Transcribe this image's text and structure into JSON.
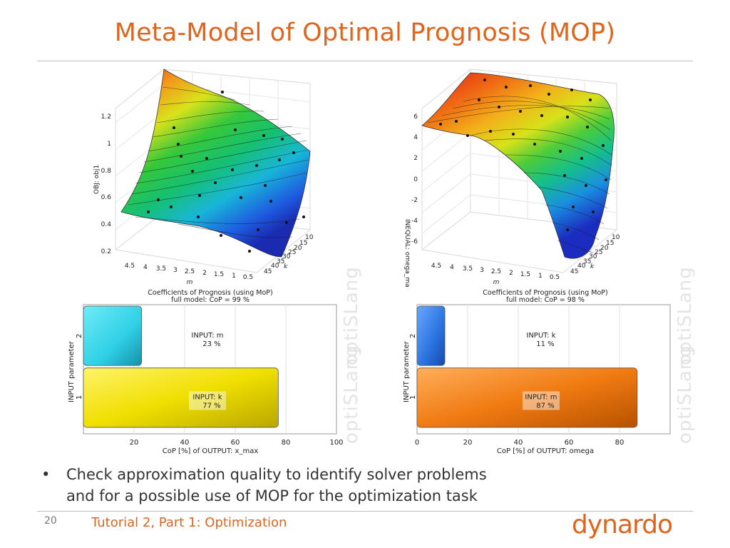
{
  "slide": {
    "title": "Meta-Model of Optimal Prognosis (MOP)",
    "page_number": "20",
    "footer_text": "Tutorial 2, Part 1: Optimization",
    "logo_text": "dynardo",
    "bullets": [
      [
        "Check approximation quality to identify solver problems",
        "and for a possible use of MOP for the optimization task"
      ]
    ],
    "watermark": "optiSLang"
  },
  "colors": {
    "title": "#e0641c",
    "footer": "#e0641c",
    "rule": "#bdbdbd"
  },
  "chart_data": [
    {
      "type": "surface3d",
      "zlabel": "OBJ: obj1",
      "xlabel": "m",
      "ylabel": "k",
      "x_ticks": [
        "4.5",
        "4",
        "3.5",
        "3",
        "2.5",
        "2",
        "1.5",
        "1",
        "0.5"
      ],
      "y_ticks": [
        "10",
        "15",
        "20",
        "25",
        "30",
        "35",
        "40",
        "45"
      ],
      "z_ticks": [
        "0.2",
        "0.4",
        "0.6",
        "0.8",
        "1",
        "1.2"
      ],
      "colormap": "jet (blue low to red high)"
    },
    {
      "type": "surface3d",
      "zlabel": "INEQUAL: omega_max",
      "xlabel": "m",
      "ylabel": "k",
      "x_ticks": [
        "4.5",
        "4",
        "3.5",
        "3",
        "2.5",
        "2",
        "1.5",
        "1",
        "0.5"
      ],
      "y_ticks": [
        "10",
        "15",
        "20",
        "25",
        "30",
        "35",
        "40",
        "45"
      ],
      "z_ticks": [
        "-6",
        "-4",
        "-2",
        "0",
        "2",
        "4",
        "6"
      ],
      "colormap": "jet (blue low to red high)"
    },
    {
      "type": "bar",
      "orientation": "horizontal",
      "title": "Coefficients of Prognosis (using MoP)",
      "subtitle": "full model: CoP =    99 %",
      "xlabel": "CoP [%] of OUTPUT: x_max",
      "ylabel": "INPUT parameter",
      "xlim": [
        0,
        100
      ],
      "x_ticks": [
        "20",
        "40",
        "60",
        "80",
        "100"
      ],
      "categories": [
        "1",
        "2"
      ],
      "bar_labels": [
        {
          "name": "INPUT: k",
          "value_text": "77 %",
          "value": 77,
          "color": "#f2e000"
        },
        {
          "name": "INPUT: m",
          "value_text": "23 %",
          "value": 23,
          "color": "#2fd0e6"
        }
      ]
    },
    {
      "type": "bar",
      "orientation": "horizontal",
      "title": "Coefficients of Prognosis (using MoP)",
      "subtitle": "full model: CoP =    98 %",
      "xlabel": "CoP [%] of OUTPUT: omega",
      "ylabel": "INPUT parameter",
      "xlim": [
        0,
        100
      ],
      "x_ticks": [
        "0",
        "20",
        "40",
        "60",
        "80"
      ],
      "categories": [
        "1",
        "2"
      ],
      "bar_labels": [
        {
          "name": "INPUT: m",
          "value_text": "87 %",
          "value": 87,
          "color": "#f07b12"
        },
        {
          "name": "INPUT: k",
          "value_text": "11 %",
          "value": 11,
          "color": "#2a72e0"
        }
      ]
    }
  ]
}
